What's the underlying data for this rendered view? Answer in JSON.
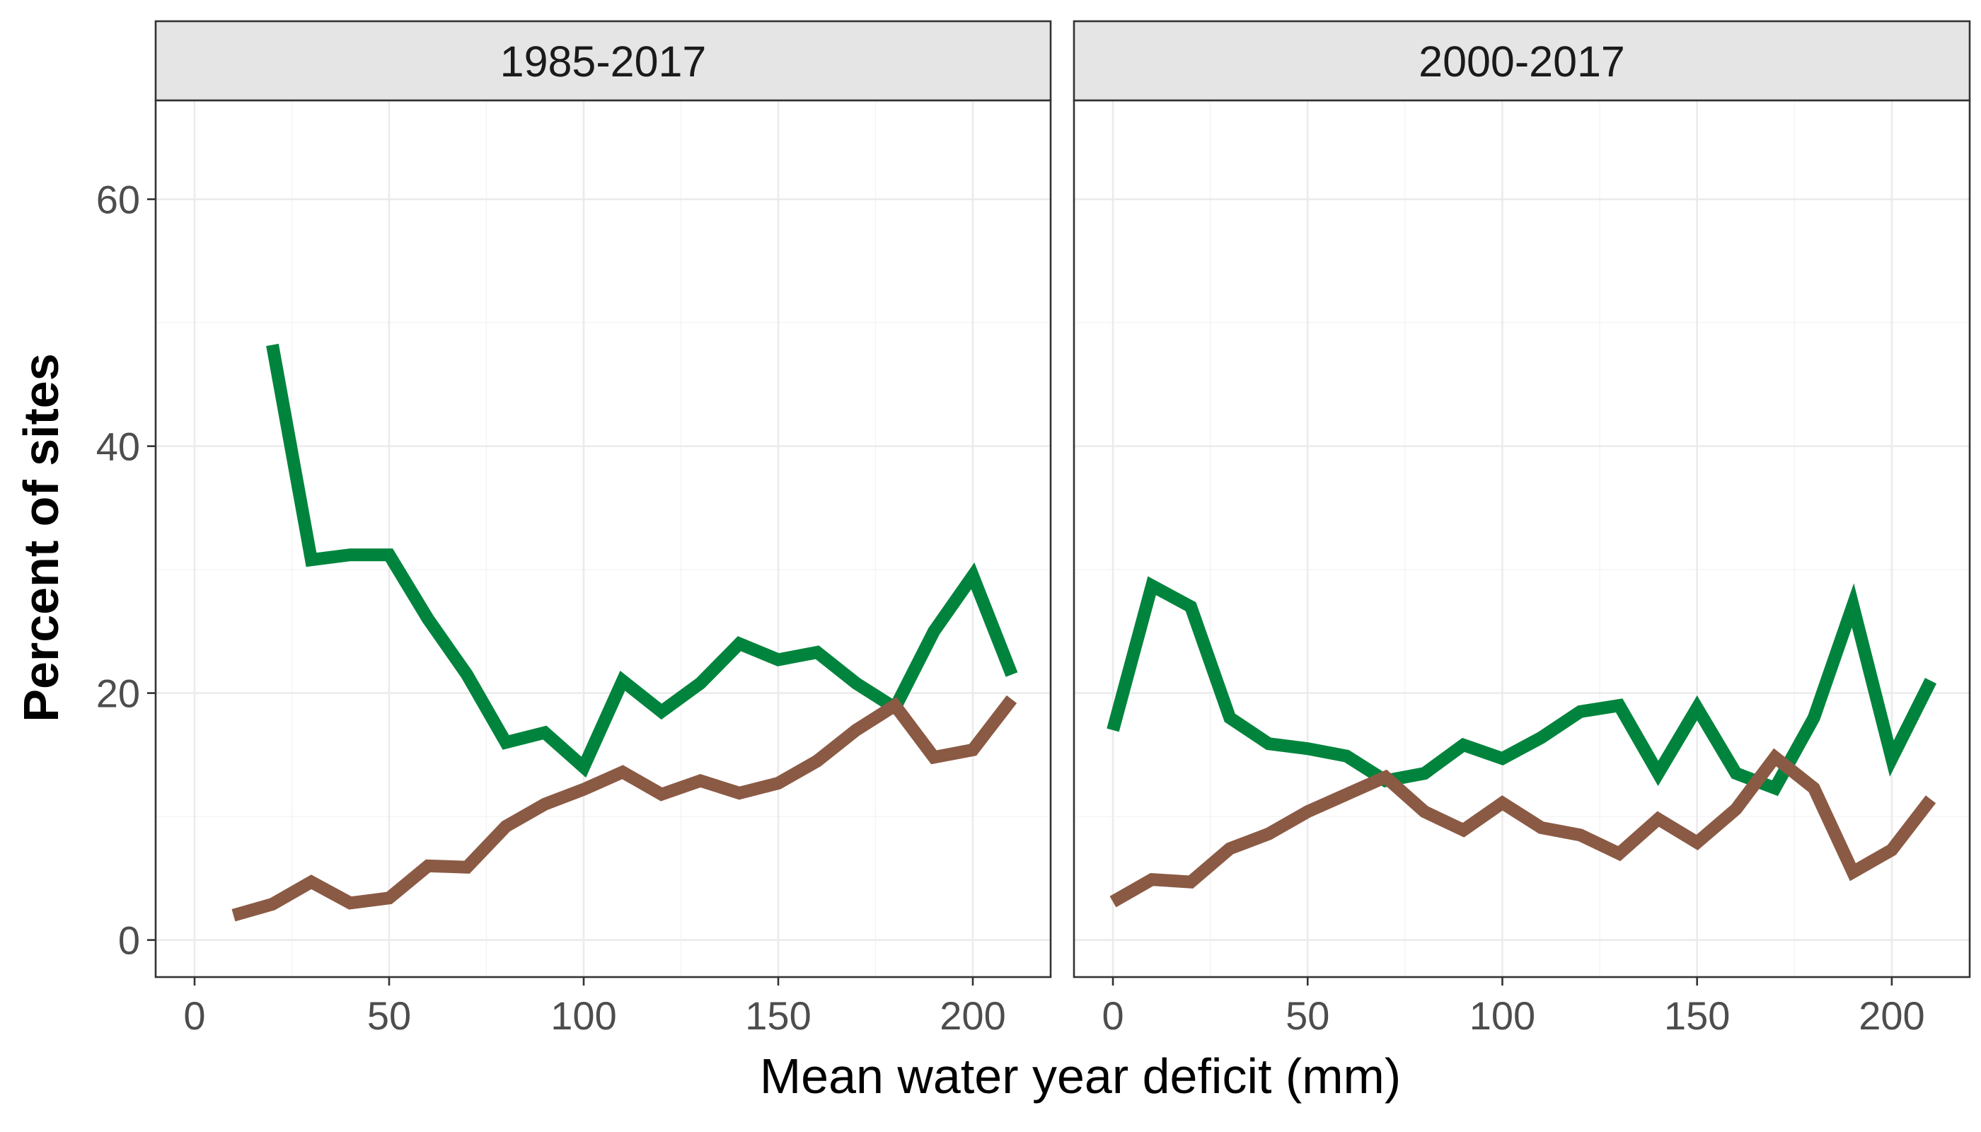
{
  "chart_data": {
    "type": "line",
    "ylabel": "Percent of sites",
    "xlabel": "Mean water year deficit (mm)",
    "xlim": [
      -10,
      220
    ],
    "ylim": [
      -3,
      68
    ],
    "x_ticks": [
      0,
      50,
      100,
      150,
      200
    ],
    "x_tick_labels": [
      "0",
      "50",
      "100",
      "150",
      "200"
    ],
    "y_ticks": [
      0,
      20,
      40,
      60
    ],
    "y_tick_labels": [
      "0",
      "20",
      "40",
      "60"
    ],
    "grid": true,
    "colors": {
      "green": "#00843d",
      "brown": "#8b5a44"
    },
    "panels": [
      {
        "title": "1985-2017",
        "series": [
          {
            "name": "green",
            "x": [
              20,
              30,
              40,
              50,
              60,
              70,
              80,
              90,
              100,
              110,
              120,
              130,
              140,
              150,
              160,
              170,
              180,
              190,
              200,
              210
            ],
            "y": [
              48.2,
              30.8,
              31.2,
              31.2,
              26,
              21.5,
              16,
              16.8,
              14,
              21,
              18.5,
              20.8,
              24,
              22.7,
              23.3,
              20.8,
              18.8,
              25,
              29.5,
              21.5
            ]
          },
          {
            "name": "brown",
            "x": [
              10,
              20,
              30,
              40,
              50,
              60,
              70,
              80,
              90,
              100,
              110,
              120,
              130,
              140,
              150,
              160,
              170,
              180,
              190,
              200,
              210
            ],
            "y": [
              2,
              2.9,
              4.7,
              3,
              3.4,
              6,
              5.9,
              9.2,
              11,
              12.2,
              13.6,
              11.8,
              12.9,
              11.9,
              12.7,
              14.5,
              17,
              19,
              14.8,
              15.4,
              19.5
            ]
          }
        ]
      },
      {
        "title": "2000-2017",
        "series": [
          {
            "name": "green",
            "x": [
              0,
              10,
              20,
              30,
              40,
              50,
              60,
              70,
              80,
              90,
              100,
              110,
              120,
              130,
              140,
              150,
              160,
              170,
              180,
              190,
              200,
              210
            ],
            "y": [
              17,
              28.7,
              27,
              18,
              15.9,
              15.5,
              14.9,
              12.9,
              13.5,
              15.8,
              14.7,
              16.4,
              18.5,
              19,
              13.5,
              18.8,
              13.5,
              12.3,
              18,
              27.1,
              14.7,
              21
            ]
          },
          {
            "name": "brown",
            "x": [
              0,
              10,
              20,
              30,
              40,
              50,
              60,
              70,
              80,
              90,
              100,
              110,
              120,
              130,
              140,
              150,
              160,
              170,
              180,
              190,
              200,
              210
            ],
            "y": [
              3.1,
              4.9,
              4.7,
              7.4,
              8.6,
              10.4,
              11.8,
              13.2,
              10.4,
              8.9,
              11.1,
              9.1,
              8.5,
              7,
              9.8,
              7.9,
              10.6,
              14.8,
              12.3,
              5.5,
              7.3,
              11.4
            ]
          }
        ]
      }
    ]
  }
}
